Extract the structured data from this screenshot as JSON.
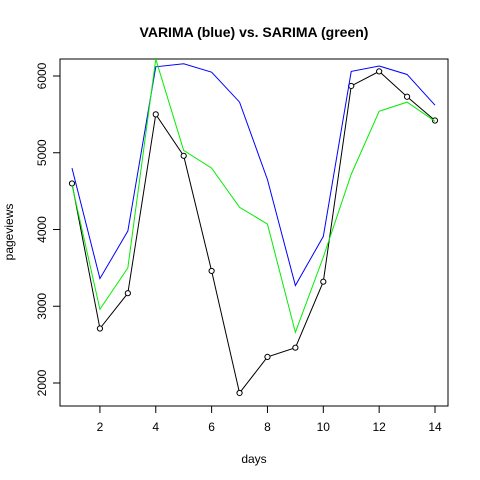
{
  "chart_data": {
    "type": "line",
    "title": "VARIMA (blue) vs. SARIMA (green)",
    "xlabel": "days",
    "ylabel": "pageviews",
    "x": [
      1,
      2,
      3,
      4,
      5,
      6,
      7,
      8,
      9,
      10,
      11,
      12,
      13,
      14
    ],
    "xlim": [
      1,
      14
    ],
    "ylim": [
      1700,
      6200
    ],
    "xticks": [
      2,
      4,
      6,
      8,
      10,
      12,
      14
    ],
    "yticks": [
      2000,
      3000,
      4000,
      5000,
      6000
    ],
    "grid": false,
    "legend": "none",
    "series": [
      {
        "values": [
          4600,
          2710,
          3170,
          5500,
          4960,
          3460,
          1870,
          2340,
          2460,
          3320,
          5870,
          6060,
          5730,
          5420
        ],
        "color": "#000000",
        "markers": "open-circle"
      },
      {
        "values": [
          4800,
          3360,
          3980,
          6120,
          6160,
          6050,
          5660,
          4650,
          3270,
          3910,
          6060,
          6130,
          6020,
          5620
        ],
        "color": "#0000ff",
        "markers": "none"
      },
      {
        "values": [
          4580,
          2960,
          3500,
          6220,
          5030,
          4800,
          4290,
          4070,
          2660,
          3640,
          4720,
          5540,
          5660,
          5410
        ],
        "color": "#00ee00",
        "markers": "none"
      }
    ]
  }
}
